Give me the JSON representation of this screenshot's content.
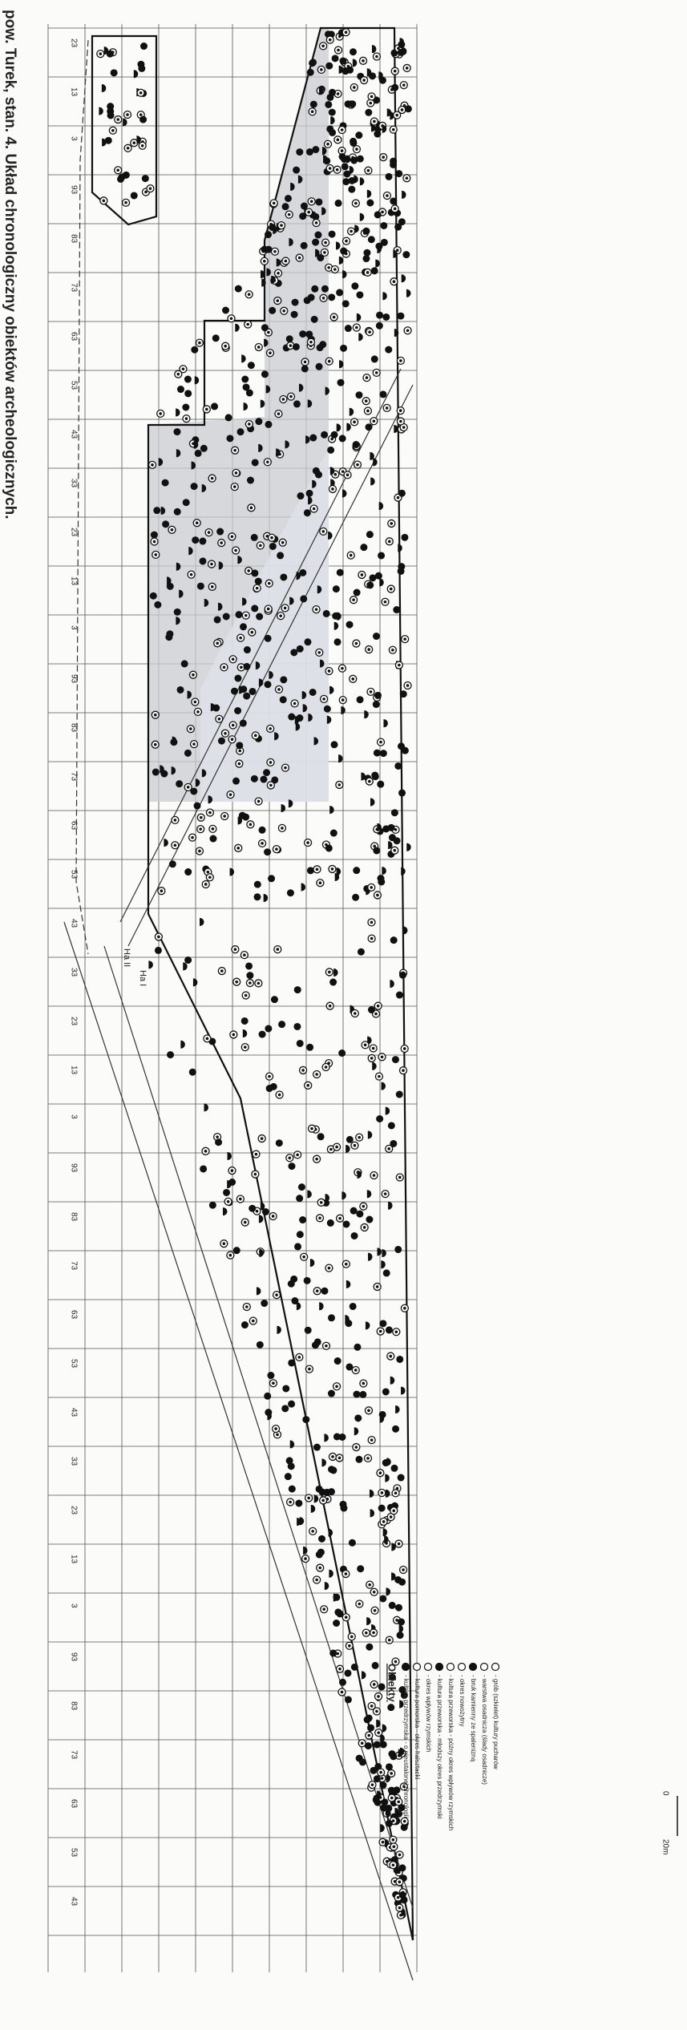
{
  "caption": "pow. Turek, stan. 4. Układ chronologiczny obiektów archeologicznych.",
  "grid_row_labels": [
    "23",
    "13",
    "3",
    "93",
    "83",
    "73",
    "63",
    "53",
    "43",
    "33",
    "23",
    "13",
    "3",
    "93",
    "83",
    "73",
    "63",
    "53",
    "43",
    "33",
    "23",
    "13",
    "3",
    "93",
    "83",
    "73",
    "63",
    "53",
    "43",
    "33",
    "23",
    "13",
    "3",
    "93",
    "83",
    "73",
    "63",
    "53",
    "43"
  ],
  "area_labels": [
    "Ha II",
    "Ha I"
  ],
  "legend": {
    "title": "Obiekty",
    "items": [
      "- kultura przedrzymska - o nieustalonej chronologii",
      "- kultura pomorska - okres halsztacki",
      "- okres wpływów rzymskich",
      "- kultura przeworska - młodszy okres przedrzymski",
      "- kultura przeworska - późny okres wpływów rzymskich",
      "- okres nowożytny",
      "- bruk kamienny ze spalenizną",
      "- warstwa osadnicza (ślady osadnicze)",
      "- grób (szkielet) kultury pucharów"
    ]
  },
  "scale": {
    "start": "0",
    "end": "20m"
  }
}
